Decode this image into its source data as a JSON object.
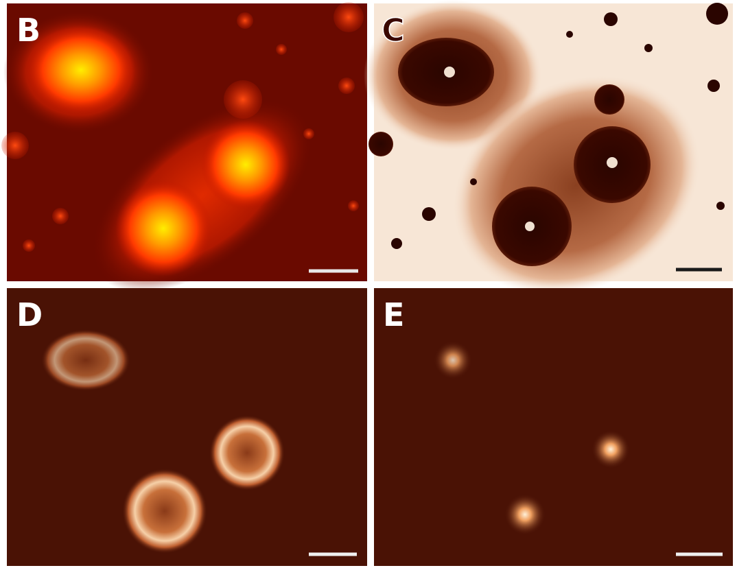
{
  "panels": [
    {
      "label": "B"
    },
    {
      "label": "C"
    },
    {
      "label": "D"
    },
    {
      "label": "E"
    }
  ]
}
